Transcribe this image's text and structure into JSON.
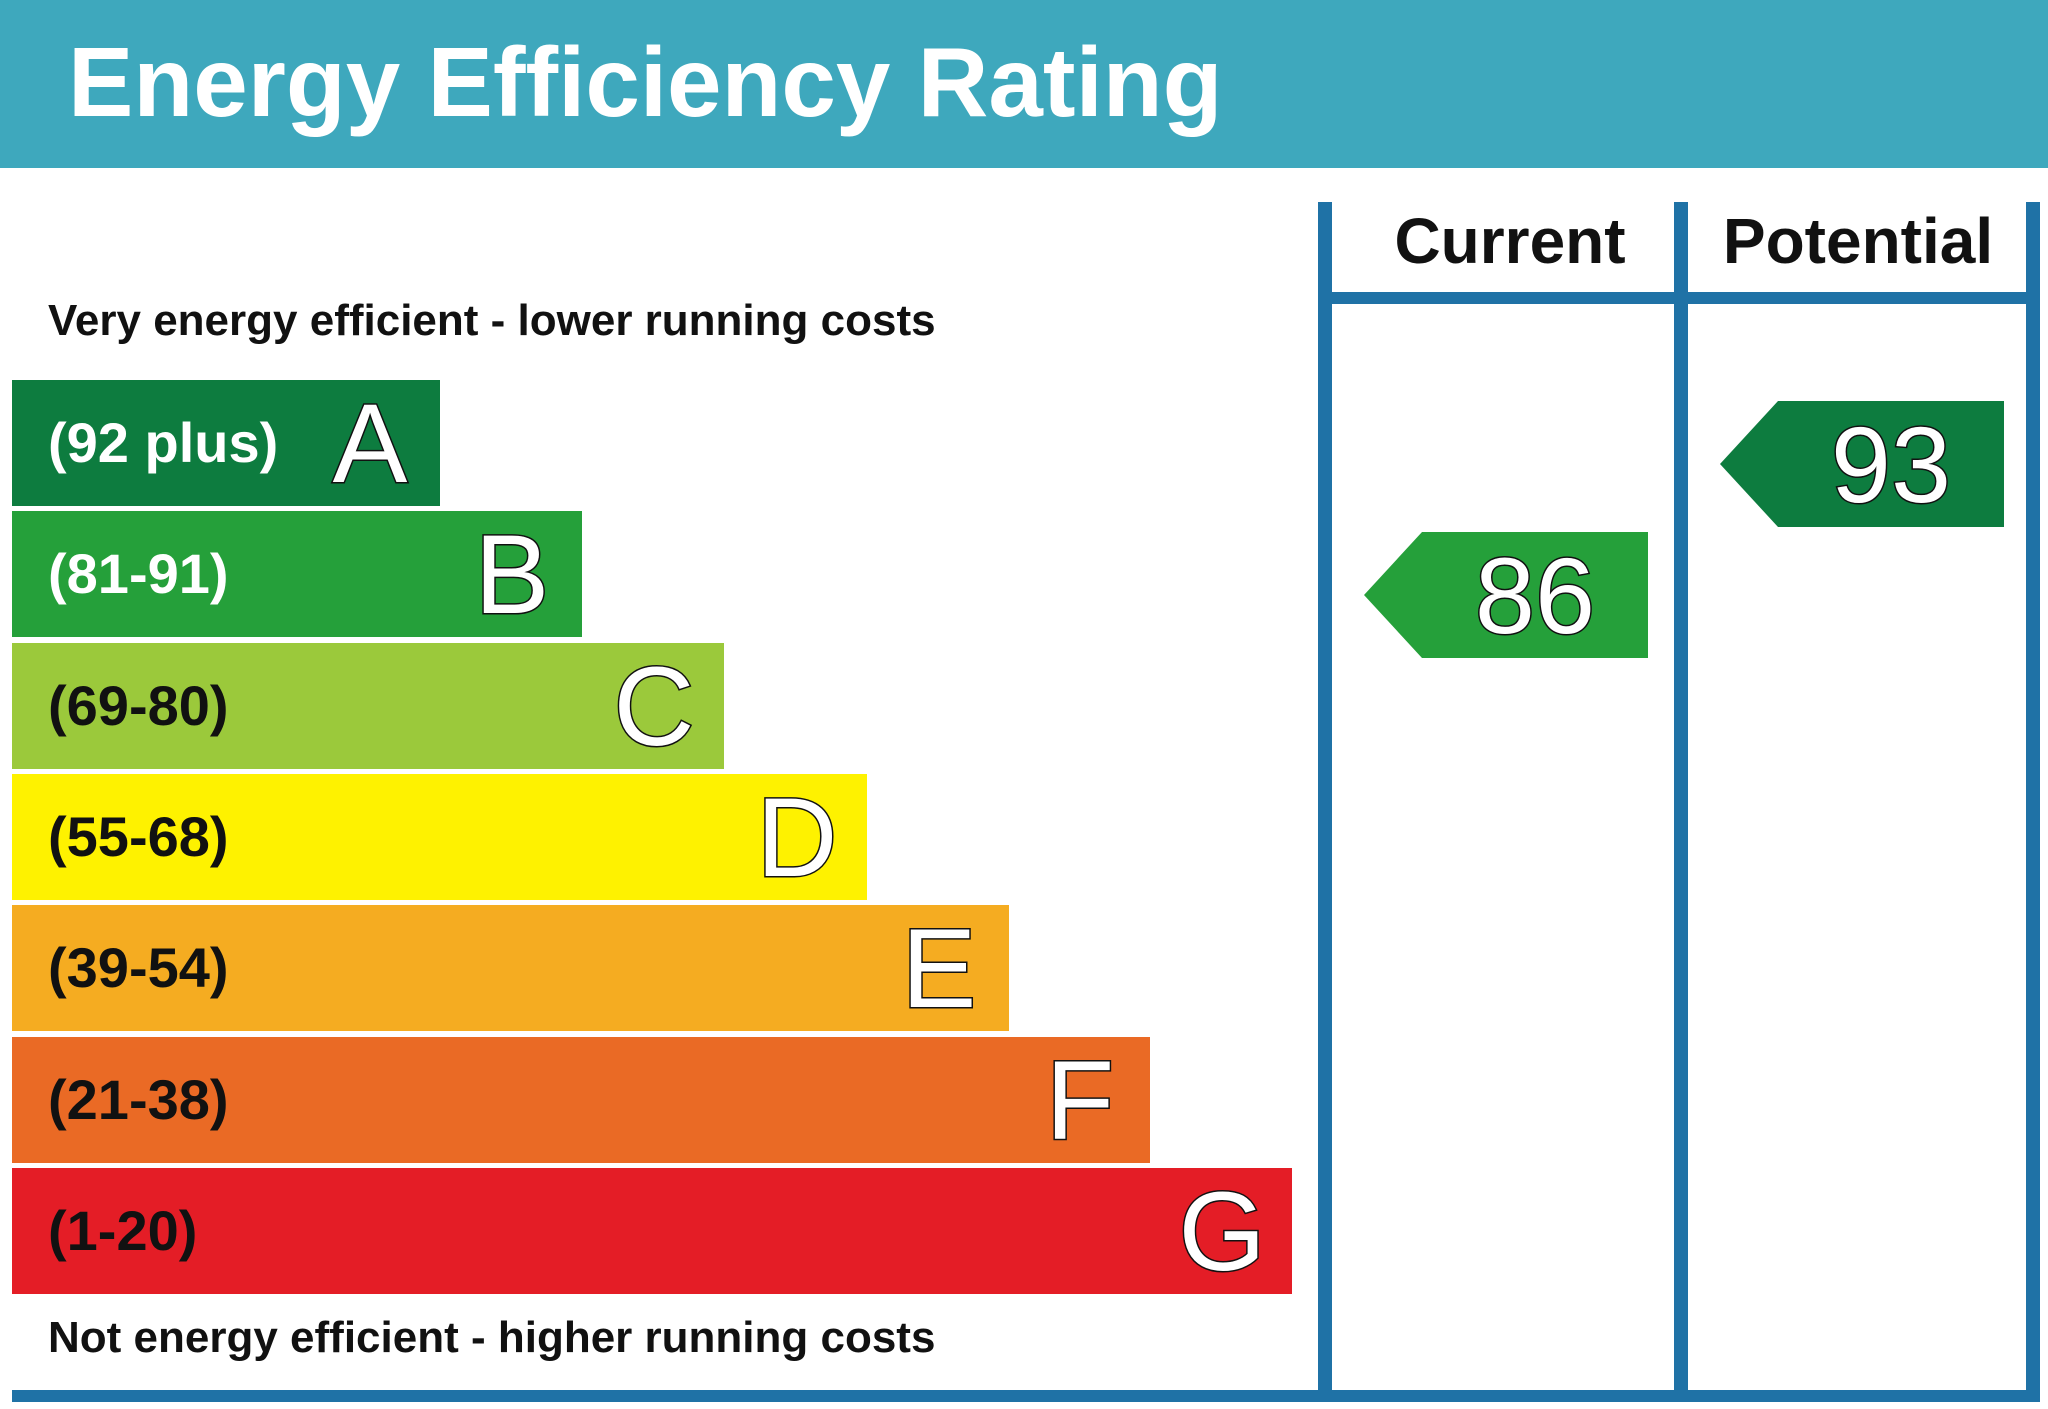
{
  "header": {
    "title": "Energy Efficiency Rating",
    "background": "#3ea8bd"
  },
  "captions": {
    "top": "Very energy efficient - lower running costs",
    "bottom": "Not energy efficient - higher running costs"
  },
  "columns": {
    "current": "Current",
    "potential": "Potential"
  },
  "frame_color": "#1f72a6",
  "chart_data": {
    "type": "bar",
    "title": "Energy Efficiency Rating",
    "categories": [
      "A",
      "B",
      "C",
      "D",
      "E",
      "F",
      "G"
    ],
    "ranges": [
      "(92 plus)",
      "(81-91)",
      "(69-80)",
      "(55-68)",
      "(39-54)",
      "(21-38)",
      "(1-20)"
    ],
    "colors": [
      "#0d7c3f",
      "#25a03a",
      "#9bc93b",
      "#fef200",
      "#f5ac21",
      "#ea6a25",
      "#e41d26"
    ],
    "range_text_colors": [
      "#ffffff",
      "#ffffff",
      "#111111",
      "#111111",
      "#111111",
      "#111111",
      "#111111"
    ],
    "current": {
      "value": 86,
      "band": "B"
    },
    "potential": {
      "value": 93,
      "band": "A"
    }
  }
}
